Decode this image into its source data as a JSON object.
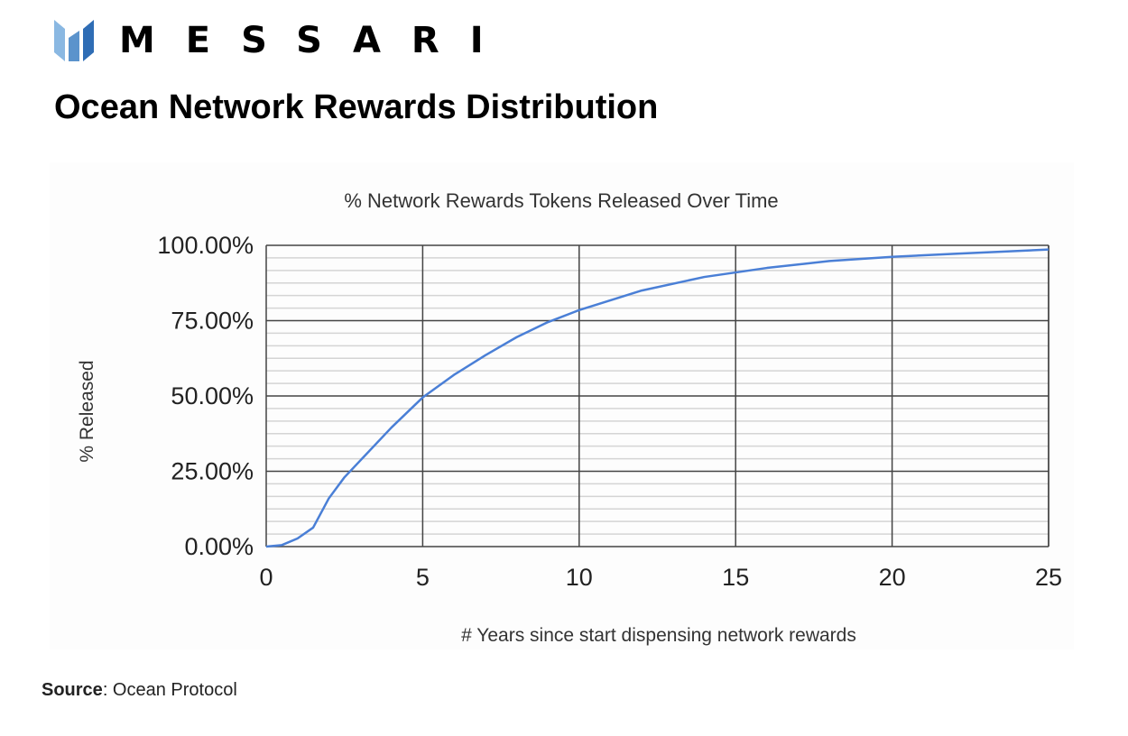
{
  "brand": {
    "name": "MESSARI",
    "colors": [
      "#8ab8e2",
      "#5b93cc",
      "#2f6db5"
    ]
  },
  "page_title": "Ocean Network Rewards Distribution",
  "source": {
    "label": "Source",
    "value": ": Ocean Protocol"
  },
  "chart_data": {
    "type": "line",
    "title": "% Network Rewards Tokens Released Over Time",
    "xlabel": "# Years since start dispensing network rewards",
    "ylabel": "% Released",
    "xlim": [
      0,
      25
    ],
    "ylim": [
      0,
      100
    ],
    "xticks": [
      "0",
      "5",
      "10",
      "15",
      "20",
      "25"
    ],
    "yticks": [
      "0.00%",
      "25.00%",
      "50.00%",
      "75.00%",
      "100.00%"
    ],
    "grid": true,
    "line_color": "#4a7fd6",
    "series": [
      {
        "x": [
          0,
          0.5,
          1,
          1.5,
          2,
          2.5,
          3,
          4,
          5,
          6,
          7,
          8,
          9,
          10,
          12,
          14,
          15,
          16,
          18,
          20,
          22,
          25
        ],
        "y": [
          0,
          0.5,
          2.7,
          6.3,
          16,
          23,
          28.5,
          39.5,
          49.5,
          57,
          63.5,
          69.5,
          74.5,
          78.5,
          85,
          89.5,
          91,
          92.5,
          94.8,
          96.2,
          97.2,
          98.6
        ]
      }
    ]
  }
}
